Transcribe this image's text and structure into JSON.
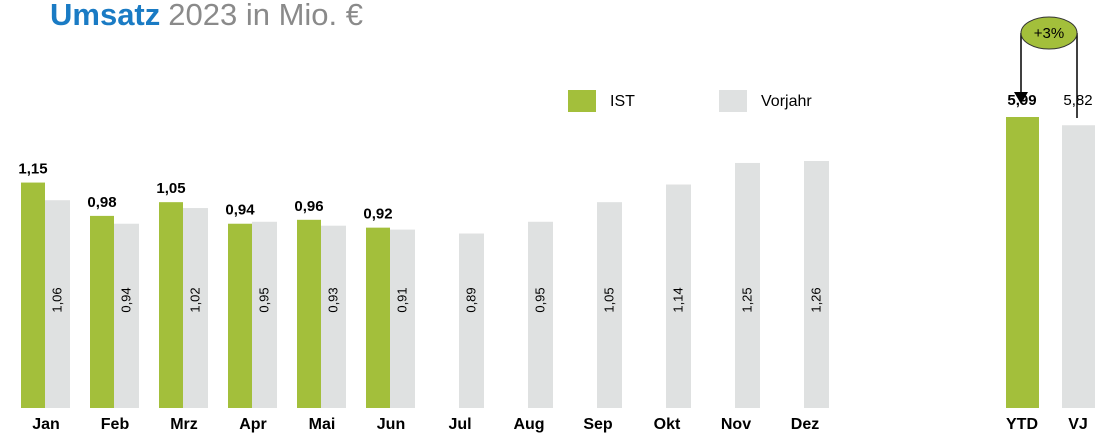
{
  "chart_data": [
    {
      "type": "bar",
      "title_highlight": "Umsatz",
      "title": "2023 in Mio. €",
      "categories": [
        "Jan",
        "Feb",
        "Mrz",
        "Apr",
        "Mai",
        "Jun",
        "Jul",
        "Aug",
        "Sep",
        "Okt",
        "Nov",
        "Dez"
      ],
      "series": [
        {
          "name": "IST",
          "color": "#a3bf3b",
          "values": [
            1.15,
            0.98,
            1.05,
            0.94,
            0.96,
            0.92,
            null,
            null,
            null,
            null,
            null,
            null
          ],
          "value_labels": [
            "1,15",
            "0,98",
            "1,05",
            "0,94",
            "0,96",
            "0,92",
            null,
            null,
            null,
            null,
            null,
            null
          ]
        },
        {
          "name": "Vorjahr",
          "color": "#dfe1e1",
          "values": [
            1.06,
            0.94,
            1.02,
            0.95,
            0.93,
            0.91,
            0.89,
            0.95,
            1.05,
            1.14,
            1.25,
            1.26
          ],
          "value_labels": [
            "1,06",
            "0,94",
            "1,02",
            "0,95",
            "0,93",
            "0,91",
            "0,89",
            "0,95",
            "1,05",
            "1,14",
            "1,25",
            "1,26"
          ]
        }
      ],
      "legend": "top-right"
    },
    {
      "type": "bar",
      "categories": [
        "YTD",
        "VJ"
      ],
      "values": [
        5.99,
        5.82
      ],
      "value_labels": [
        "5,99",
        "5,82"
      ],
      "colors": [
        "#a3bf3b",
        "#dfe1e1"
      ],
      "annotation": "+3%"
    }
  ]
}
